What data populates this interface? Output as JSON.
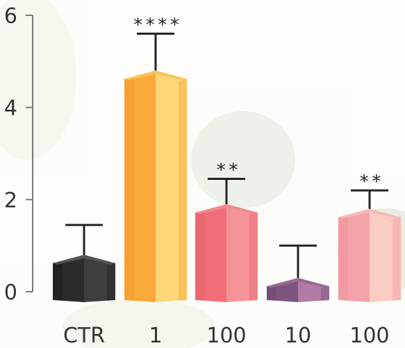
{
  "chart_data": {
    "type": "bar",
    "categories": [
      "CTR",
      "1",
      "100",
      "10",
      "100"
    ],
    "values": [
      0.8,
      4.8,
      1.9,
      0.3,
      1.8
    ],
    "errors": [
      0.65,
      0.8,
      0.55,
      0.7,
      0.4
    ],
    "significance": [
      "",
      "****",
      "**",
      "",
      "**"
    ],
    "ylim": [
      0,
      6
    ],
    "yticks": [
      0,
      2,
      4,
      6
    ],
    "bar_colors": [
      {
        "left": "#2b2b2b",
        "right": "#3e3e3e",
        "top": "#555555",
        "side": "#1c1c1c"
      },
      {
        "left": "#f8a93a",
        "right": "#fdd778",
        "top": "#fbc35a",
        "side": "#f09a28"
      },
      {
        "left": "#f06e78",
        "right": "#f59498",
        "top": "#f48a8e",
        "side": "#e35e68"
      },
      {
        "left": "#7c5580",
        "right": "#b07ba4",
        "top": "#9a6a94",
        "side": "#6a4670"
      },
      {
        "left": "#f5a3aa",
        "right": "#fbcdc2",
        "top": "#f8b8b8",
        "side": "#ee9098"
      }
    ],
    "title": "",
    "xlabel": "",
    "ylabel": ""
  },
  "background": {
    "description_icon": "leaf-watermark-icon"
  }
}
